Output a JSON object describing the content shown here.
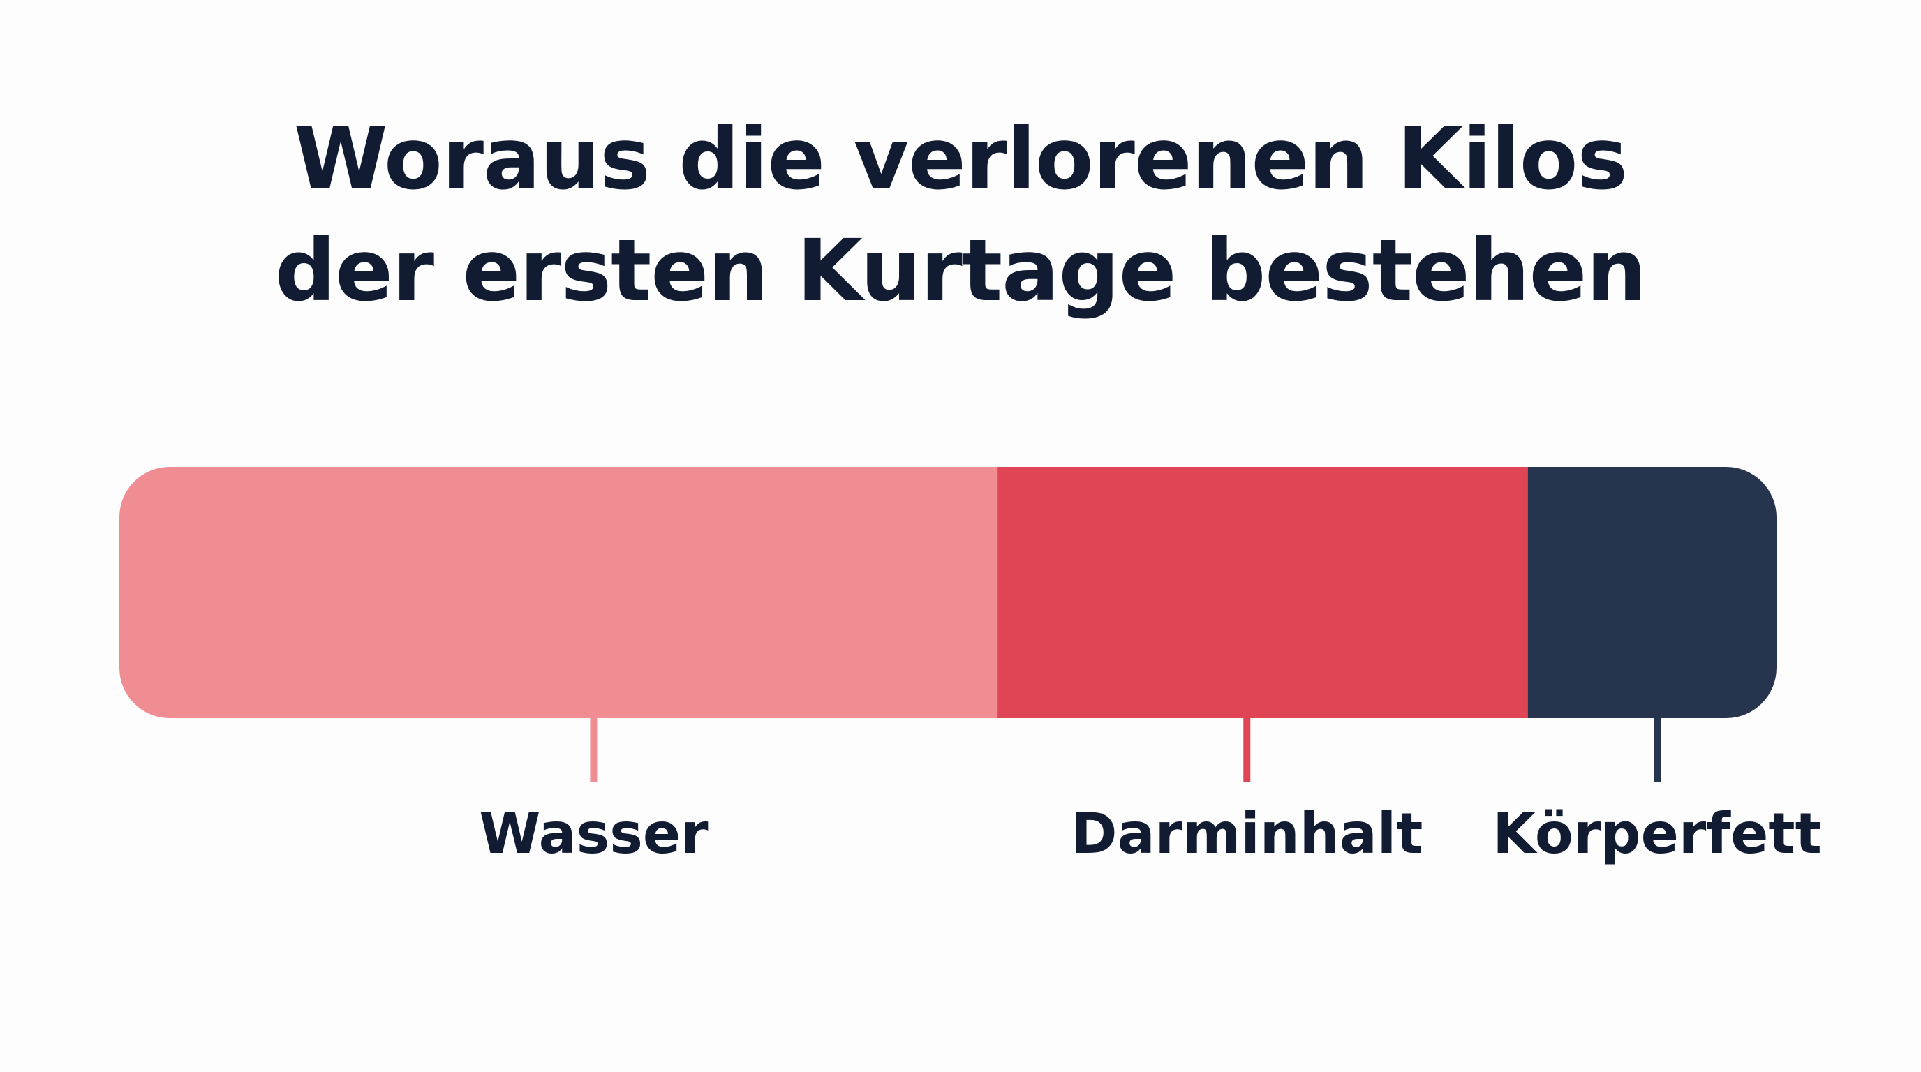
{
  "title_lines": [
    "Woraus die verlorenen Kilos",
    "der ersten Kurtage bestehen"
  ],
  "chart_data": {
    "type": "bar",
    "orientation": "horizontal",
    "stacked": true,
    "title": "Woraus die verlorenen Kilos der ersten Kurtage bestehen",
    "categories": [
      "Wasser",
      "Darminhalt",
      "Körperfett"
    ],
    "values": [
      53,
      32,
      15
    ],
    "unit": "percent (estimated share of the bar length; no values printed)",
    "colors": [
      "#f08d93",
      "#df4555",
      "#27344d"
    ],
    "axes_shown": false,
    "grid": false,
    "legend": "none; category labels below each segment"
  }
}
